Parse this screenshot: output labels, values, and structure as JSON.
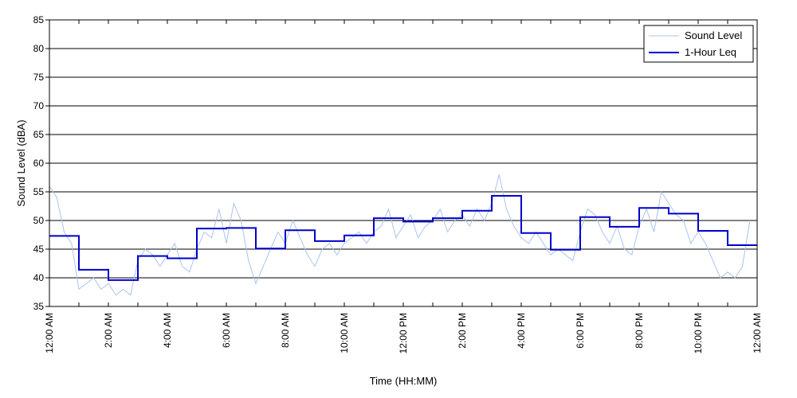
{
  "chart_data": {
    "type": "line",
    "title": "",
    "xlabel": "Time (HH:MM)",
    "ylabel": "Sound Level (dBA)",
    "ylim": [
      35,
      85
    ],
    "y_ticks": [
      35,
      40,
      45,
      50,
      55,
      60,
      65,
      70,
      75,
      80,
      85
    ],
    "xlim_hours": [
      0,
      24
    ],
    "x_ticks": [
      {
        "hour": 0,
        "label": "12:00 AM"
      },
      {
        "hour": 2,
        "label": "2:00 AM"
      },
      {
        "hour": 4,
        "label": "4:00 AM"
      },
      {
        "hour": 6,
        "label": "6:00 AM"
      },
      {
        "hour": 8,
        "label": "8:00 AM"
      },
      {
        "hour": 10,
        "label": "10:00 AM"
      },
      {
        "hour": 12,
        "label": "12:00 PM"
      },
      {
        "hour": 14,
        "label": "2:00 PM"
      },
      {
        "hour": 16,
        "label": "4:00 PM"
      },
      {
        "hour": 18,
        "label": "6:00 PM"
      },
      {
        "hour": 20,
        "label": "8:00 PM"
      },
      {
        "hour": 22,
        "label": "10:00 PM"
      },
      {
        "hour": 24,
        "label": "12:00 AM"
      }
    ],
    "grid": "horizontal",
    "legend_position": "top-right",
    "series": [
      {
        "name": "Sound Level",
        "style": "thin-line",
        "color": "#a9c4ee",
        "points": [
          [
            0,
            56
          ],
          [
            0.25,
            54
          ],
          [
            0.5,
            48
          ],
          [
            0.75,
            46
          ],
          [
            1,
            38
          ],
          [
            1.25,
            39
          ],
          [
            1.5,
            40
          ],
          [
            1.75,
            38
          ],
          [
            2,
            39
          ],
          [
            2.25,
            37
          ],
          [
            2.5,
            38
          ],
          [
            2.75,
            37
          ],
          [
            3,
            43
          ],
          [
            3.25,
            45
          ],
          [
            3.5,
            44
          ],
          [
            3.75,
            42
          ],
          [
            4,
            44
          ],
          [
            4.25,
            46
          ],
          [
            4.5,
            42
          ],
          [
            4.75,
            41
          ],
          [
            5,
            45
          ],
          [
            5.25,
            48
          ],
          [
            5.5,
            47
          ],
          [
            5.75,
            52
          ],
          [
            6,
            46
          ],
          [
            6.25,
            53
          ],
          [
            6.5,
            50
          ],
          [
            6.75,
            43
          ],
          [
            7,
            39
          ],
          [
            7.25,
            42
          ],
          [
            7.5,
            45
          ],
          [
            7.75,
            48
          ],
          [
            8,
            46
          ],
          [
            8.25,
            50
          ],
          [
            8.5,
            47
          ],
          [
            8.75,
            44
          ],
          [
            9,
            42
          ],
          [
            9.25,
            45
          ],
          [
            9.5,
            46
          ],
          [
            9.75,
            44
          ],
          [
            10,
            46
          ],
          [
            10.25,
            47
          ],
          [
            10.5,
            48
          ],
          [
            10.75,
            46
          ],
          [
            11,
            48
          ],
          [
            11.25,
            49
          ],
          [
            11.5,
            52
          ],
          [
            11.75,
            47
          ],
          [
            12,
            49
          ],
          [
            12.25,
            51
          ],
          [
            12.5,
            47
          ],
          [
            12.75,
            49
          ],
          [
            13,
            50
          ],
          [
            13.25,
            52
          ],
          [
            13.5,
            48
          ],
          [
            13.75,
            50
          ],
          [
            14,
            51
          ],
          [
            14.25,
            49
          ],
          [
            14.5,
            52
          ],
          [
            14.75,
            50
          ],
          [
            15,
            53
          ],
          [
            15.25,
            58
          ],
          [
            15.5,
            52
          ],
          [
            15.75,
            49
          ],
          [
            16,
            47
          ],
          [
            16.25,
            46
          ],
          [
            16.5,
            48
          ],
          [
            16.75,
            46
          ],
          [
            17,
            44
          ],
          [
            17.25,
            45
          ],
          [
            17.5,
            44
          ],
          [
            17.75,
            43
          ],
          [
            18,
            48
          ],
          [
            18.25,
            52
          ],
          [
            18.5,
            51
          ],
          [
            18.75,
            48
          ],
          [
            19,
            46
          ],
          [
            19.25,
            49
          ],
          [
            19.5,
            45
          ],
          [
            19.75,
            44
          ],
          [
            20,
            49
          ],
          [
            20.25,
            52
          ],
          [
            20.5,
            48
          ],
          [
            20.75,
            55
          ],
          [
            21,
            53
          ],
          [
            21.25,
            51
          ],
          [
            21.5,
            50
          ],
          [
            21.75,
            46
          ],
          [
            22,
            48
          ],
          [
            22.25,
            46
          ],
          [
            22.5,
            43
          ],
          [
            22.75,
            40
          ],
          [
            23,
            41
          ],
          [
            23.25,
            40
          ],
          [
            23.5,
            42
          ],
          [
            23.75,
            50
          ]
        ]
      },
      {
        "name": "1-Hour Leq",
        "style": "step",
        "color": "#0000cc",
        "hourly_values": [
          47.3,
          41.4,
          39.6,
          43.8,
          43.4,
          48.6,
          48.7,
          45.1,
          48.3,
          46.4,
          47.4,
          50.4,
          49.8,
          50.4,
          51.7,
          54.3,
          47.8,
          44.9,
          50.6,
          48.9,
          52.2,
          51.2,
          48.2,
          45.7
        ]
      }
    ]
  }
}
